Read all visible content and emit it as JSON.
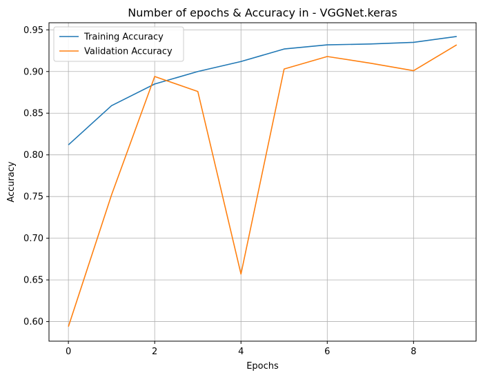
{
  "chart_data": {
    "type": "line",
    "title": "Number of epochs & Accuracy in - VGGNet.keras",
    "xlabel": "Epochs",
    "ylabel": "Accuracy",
    "x": [
      0,
      1,
      2,
      3,
      4,
      5,
      6,
      7,
      8,
      9
    ],
    "xlim": [
      -0.45,
      9.45
    ],
    "ylim": [
      0.5765,
      0.9585
    ],
    "xticks": [
      0,
      2,
      4,
      6,
      8
    ],
    "xtick_labels": [
      "0",
      "2",
      "4",
      "6",
      "8"
    ],
    "yticks": [
      0.6,
      0.65,
      0.7,
      0.75,
      0.8,
      0.85,
      0.9,
      0.95
    ],
    "ytick_labels": [
      "0.60",
      "0.65",
      "0.70",
      "0.75",
      "0.80",
      "0.85",
      "0.90",
      "0.95"
    ],
    "grid": true,
    "legend_position": "upper-left",
    "series": [
      {
        "name": "Training Accuracy",
        "color": "#1f77b4",
        "values": [
          0.812,
          0.859,
          0.885,
          0.9,
          0.912,
          0.927,
          0.932,
          0.933,
          0.935,
          0.942
        ]
      },
      {
        "name": "Validation Accuracy",
        "color": "#ff7f0e",
        "values": [
          0.594,
          0.752,
          0.894,
          0.876,
          0.657,
          0.903,
          0.918,
          0.91,
          0.901,
          0.932
        ]
      }
    ]
  }
}
